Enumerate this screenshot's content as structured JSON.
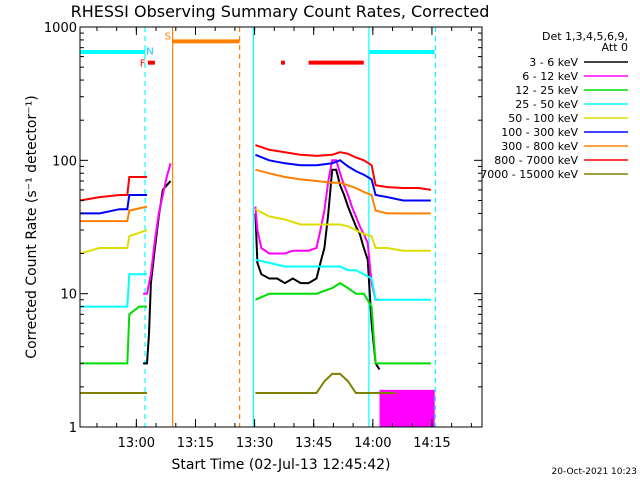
{
  "chart_data": {
    "type": "line",
    "title": "RHESSI Observing Summary Count Rates, Corrected",
    "xlabel": "Start Time (02-Jul-13 12:45:42)",
    "ylabel": "Corrected Count Rate (s⁻¹ detector⁻¹)",
    "ylog": true,
    "ylim": [
      1,
      1000
    ],
    "xlim_minutes_after_start": [
      0,
      102
    ],
    "yticks": [
      {
        "value": 1,
        "label": "1"
      },
      {
        "value": 10,
        "label": "10"
      },
      {
        "value": 100,
        "label": "100"
      },
      {
        "value": 1000,
        "label": "1000"
      }
    ],
    "xticks": [
      {
        "time": "13:00",
        "minute": 14.3
      },
      {
        "time": "13:15",
        "minute": 29.3
      },
      {
        "time": "13:30",
        "minute": 44.3
      },
      {
        "time": "13:45",
        "minute": 59.3
      },
      {
        "time": "14:00",
        "minute": 74.3
      },
      {
        "time": "14:15",
        "minute": 89.3
      }
    ],
    "legend_header": [
      "Det 1,3,4,5,6,9,",
      "Att 0"
    ],
    "legend_position": "right",
    "series": [
      {
        "name": "3 - 6 keV",
        "color": "#000000",
        "points": [
          [
            16,
            3
          ],
          [
            17,
            3
          ],
          [
            17.5,
            5
          ],
          [
            18,
            12
          ],
          [
            19,
            22
          ],
          [
            20,
            38
          ],
          [
            21,
            60
          ],
          [
            22,
            65
          ],
          [
            23,
            70
          ]
        ],
        "x": [
          44.5,
          45,
          46,
          48,
          50,
          52,
          54,
          56,
          58,
          60,
          61,
          62,
          63,
          64,
          65,
          66,
          67,
          68,
          69,
          70,
          71,
          72,
          73,
          74,
          75,
          76
        ],
        "values": [
          40,
          17,
          14,
          13,
          13,
          12,
          13,
          12,
          12,
          13,
          17,
          22,
          40,
          85,
          85,
          65,
          55,
          45,
          38,
          32,
          28,
          22,
          18,
          6,
          3,
          2.7
        ]
      },
      {
        "name": "6 - 12 keV",
        "color": "#ff00ff",
        "points": [
          [
            16,
            10
          ],
          [
            17,
            10
          ],
          [
            18,
            14
          ],
          [
            19,
            25
          ],
          [
            20,
            40
          ],
          [
            21,
            55
          ],
          [
            22,
            75
          ],
          [
            23,
            95
          ]
        ],
        "x": [
          44.5,
          45,
          46,
          48,
          50,
          52,
          54,
          56,
          58,
          60,
          61,
          62,
          63,
          64,
          65,
          66,
          67,
          68,
          69,
          70,
          71,
          72,
          73,
          74,
          75,
          76
        ],
        "values": [
          45,
          30,
          22,
          20,
          20,
          20,
          21,
          21,
          21,
          22,
          30,
          42,
          70,
          100,
          100,
          80,
          65,
          55,
          45,
          38,
          32,
          28,
          24,
          12,
          9,
          9
        ]
      },
      {
        "name": "12 - 25 keV",
        "color": "#00dd00",
        "points": [
          [
            0,
            3
          ],
          [
            5,
            3
          ],
          [
            10,
            3
          ],
          [
            12,
            3
          ],
          [
            12.5,
            7
          ],
          [
            15,
            8
          ],
          [
            17,
            8
          ]
        ],
        "x": [
          44.5,
          48,
          52,
          56,
          60,
          64,
          66,
          68,
          70,
          72,
          74,
          75,
          76,
          78,
          80,
          84,
          88,
          89
        ],
        "values": [
          9,
          10,
          10,
          10,
          10,
          11,
          12,
          11,
          10,
          10,
          8,
          3,
          3,
          3,
          3,
          3,
          3,
          3
        ]
      },
      {
        "name": "25 - 50 keV",
        "color": "#00ffff",
        "points": [
          [
            0,
            8
          ],
          [
            5,
            8
          ],
          [
            10,
            8
          ],
          [
            12,
            8
          ],
          [
            12.5,
            14
          ],
          [
            15,
            14
          ],
          [
            17,
            14
          ]
        ],
        "x": [
          44.5,
          48,
          52,
          56,
          60,
          64,
          66,
          68,
          70,
          72,
          74,
          75,
          78,
          82,
          86,
          88,
          89
        ],
        "values": [
          18,
          17,
          16,
          16,
          16,
          16,
          16,
          15,
          15,
          14,
          13,
          9,
          9,
          9,
          9,
          9,
          9
        ]
      },
      {
        "name": "50 - 100 keV",
        "color": "#dddd00",
        "points": [
          [
            0,
            20
          ],
          [
            5,
            22
          ],
          [
            10,
            22
          ],
          [
            12,
            22
          ],
          [
            12.5,
            27
          ],
          [
            17,
            30
          ]
        ],
        "x": [
          44.5,
          48,
          52,
          56,
          60,
          64,
          66,
          68,
          70,
          72,
          74,
          75,
          78,
          82,
          86,
          89
        ],
        "values": [
          43,
          38,
          36,
          33,
          33,
          33,
          33,
          32,
          30,
          28,
          27,
          22,
          22,
          21,
          21,
          21
        ]
      },
      {
        "name": "100 - 300 keV",
        "color": "#0000ff",
        "points": [
          [
            0,
            40
          ],
          [
            5,
            40
          ],
          [
            10,
            43
          ],
          [
            12,
            43
          ],
          [
            12.5,
            55
          ],
          [
            17,
            55
          ]
        ],
        "x": [
          44.5,
          48,
          52,
          56,
          60,
          64,
          66,
          68,
          70,
          72,
          74,
          75,
          78,
          82,
          86,
          89
        ],
        "values": [
          110,
          100,
          95,
          92,
          92,
          95,
          100,
          90,
          83,
          78,
          72,
          55,
          53,
          50,
          50,
          50
        ]
      },
      {
        "name": "300 - 800 keV",
        "color": "#ff8000",
        "points": [
          [
            0,
            35
          ],
          [
            5,
            35
          ],
          [
            10,
            35
          ],
          [
            12,
            35
          ],
          [
            12.5,
            42
          ],
          [
            17,
            45
          ]
        ],
        "x": [
          44.5,
          48,
          52,
          56,
          60,
          64,
          66,
          68,
          70,
          72,
          74,
          75,
          78,
          82,
          86,
          89
        ],
        "values": [
          85,
          80,
          75,
          72,
          70,
          68,
          68,
          65,
          62,
          58,
          55,
          42,
          40,
          40,
          40,
          40
        ]
      },
      {
        "name": "800 - 7000 keV",
        "color": "#ff0000",
        "points": [
          [
            0,
            50
          ],
          [
            5,
            53
          ],
          [
            10,
            55
          ],
          [
            12,
            55
          ],
          [
            12.5,
            75
          ],
          [
            17,
            75
          ]
        ],
        "x": [
          44.5,
          48,
          52,
          56,
          60,
          64,
          66,
          68,
          70,
          72,
          74,
          75,
          78,
          82,
          86,
          89
        ],
        "values": [
          130,
          120,
          115,
          110,
          108,
          110,
          115,
          112,
          105,
          100,
          92,
          65,
          63,
          62,
          62,
          60
        ]
      },
      {
        "name": "7000 - 15000 keV",
        "color": "#808000",
        "points": [
          [
            0,
            1.8
          ],
          [
            5,
            1.8
          ],
          [
            10,
            1.8
          ],
          [
            12,
            1.8
          ],
          [
            13,
            1.8
          ],
          [
            15,
            1.8
          ],
          [
            17,
            1.8
          ]
        ],
        "x": [
          44.5,
          50,
          55,
          60,
          62,
          64,
          66,
          68,
          70,
          72,
          75,
          78,
          80
        ],
        "values": [
          1.8,
          1.8,
          1.8,
          1.8,
          2.2,
          2.5,
          2.5,
          2.2,
          1.8,
          1.8,
          1.8,
          1.8,
          1.8
        ]
      }
    ],
    "spans": [
      {
        "color": "#00ffff",
        "from": 0,
        "to": 16.5,
        "level": 650
      },
      {
        "color": "#ff8000",
        "from": 23.5,
        "to": 40.5,
        "level": 780,
        "label": "S"
      },
      {
        "color": "#ff0000",
        "from": 17.2,
        "to": 19,
        "level": 540,
        "label": "F"
      },
      {
        "color": "#ff0000",
        "from": 51,
        "to": 52,
        "level": 540
      },
      {
        "color": "#ff0000",
        "from": 58,
        "to": 72,
        "level": 540
      },
      {
        "color": "#00ffff",
        "from": 73.5,
        "to": 90,
        "level": 650
      }
    ],
    "span_label_n": "N",
    "vlines": [
      {
        "color": "#00ffff",
        "x": 16.5,
        "style": "dashed"
      },
      {
        "color": "#ff8000",
        "x": 23.5,
        "style": "solid"
      },
      {
        "color": "#ff8000",
        "x": 40.5,
        "style": "dashed"
      },
      {
        "color": "#00ffff",
        "x": 44.0,
        "style": "solid"
      },
      {
        "color": "#00ffff",
        "x": 73.3,
        "style": "solid"
      },
      {
        "color": "#00ffff",
        "x": 90.2,
        "style": "dashed"
      }
    ],
    "magenta_block": {
      "from": 76,
      "to": 90,
      "low": 1,
      "high": 1.9
    }
  },
  "footer_date": "20-Oct-2021 10:23"
}
